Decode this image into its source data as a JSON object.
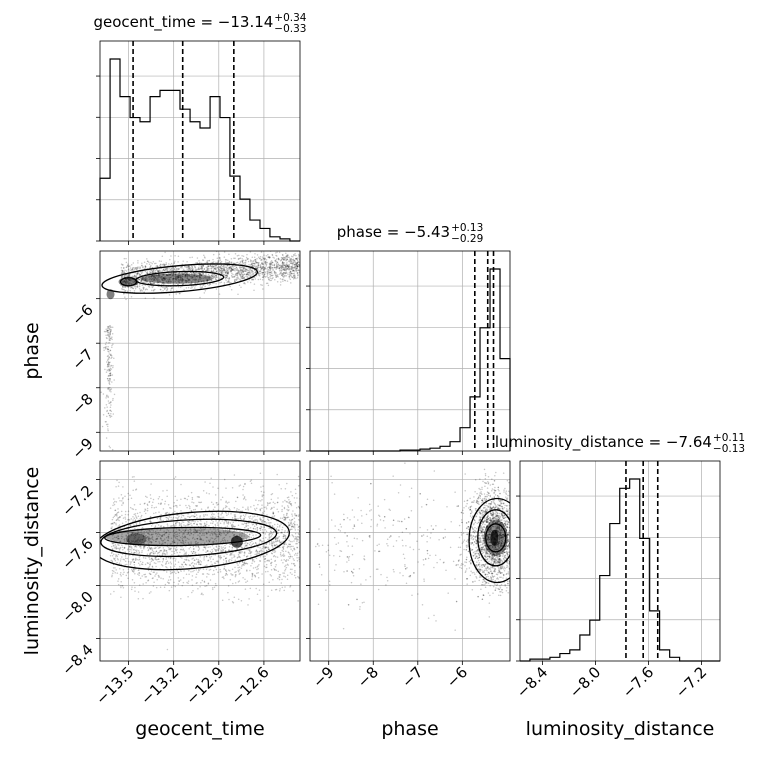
{
  "chart_data": {
    "type": "corner",
    "parameters": [
      "geocent_time",
      "phase",
      "luminosity_distance"
    ],
    "grid": true,
    "titles": [
      {
        "param": "geocent_time",
        "prefix": "geocent_time = ",
        "value": "−13.14",
        "plus": "+0.34",
        "minus": "−0.33"
      },
      {
        "param": "phase",
        "prefix": "phase = ",
        "value": "−5.43",
        "plus": "+0.13",
        "minus": "−0.29"
      },
      {
        "param": "luminosity_distance",
        "prefix": "luminosity_distance = ",
        "value": "−7.64",
        "plus": "+0.11",
        "minus": "−0.13"
      }
    ],
    "axes": {
      "geocent_time": {
        "label": "geocent_time",
        "range": [
          -13.69,
          -12.36
        ],
        "ticks": [
          -13.5,
          -13.2,
          -12.9,
          -12.6
        ],
        "tick_labels": [
          "−13.5",
          "−13.2",
          "−12.9",
          "−12.6"
        ]
      },
      "phase": {
        "label": "phase",
        "range": [
          -9.42,
          -4.93
        ],
        "ticks": [
          -9,
          -8,
          -7,
          -6
        ],
        "tick_labels": [
          "−9",
          "−8",
          "−7",
          "−6"
        ]
      },
      "luminosity_distance": {
        "label": "luminosity_distance",
        "range": [
          -8.57,
          -7.06
        ],
        "ticks": [
          -8.4,
          -8.0,
          -7.6,
          -7.2
        ],
        "tick_labels": [
          "−8.4",
          "−8.0",
          "−7.6",
          "−7.2"
        ]
      }
    },
    "histograms": [
      {
        "param": "geocent_time",
        "bin_edges": [
          -13.69,
          -13.623,
          -13.557,
          -13.49,
          -13.424,
          -13.357,
          -13.291,
          -13.224,
          -13.158,
          -13.091,
          -13.025,
          -12.958,
          -12.892,
          -12.826,
          -12.759,
          -12.693,
          -12.626,
          -12.56,
          -12.493,
          -12.427,
          -12.36
        ],
        "counts": [
          30,
          87,
          69,
          59,
          57,
          69,
          72,
          72,
          63,
          57,
          54,
          69,
          59,
          31,
          20,
          10,
          6,
          2,
          1,
          0
        ],
        "quantiles": [
          -13.47,
          -13.14,
          -12.8
        ]
      },
      {
        "param": "phase",
        "bin_edges": [
          -9.42,
          -9.196,
          -8.971,
          -8.746,
          -8.522,
          -8.297,
          -8.073,
          -7.848,
          -7.624,
          -7.399,
          -7.175,
          -6.95,
          -6.726,
          -6.501,
          -6.276,
          -6.052,
          -5.827,
          -5.603,
          -5.378,
          -5.154,
          -4.93
        ],
        "counts": [
          0,
          0,
          0,
          0,
          0,
          0,
          0,
          0,
          0,
          1,
          1,
          2,
          3,
          5,
          10,
          25,
          58,
          132,
          195,
          99
        ],
        "quantiles": [
          -5.72,
          -5.43,
          -5.3
        ]
      },
      {
        "param": "luminosity_distance",
        "bin_edges": [
          -8.57,
          -8.495,
          -8.42,
          -8.344,
          -8.269,
          -8.194,
          -8.118,
          -8.043,
          -7.968,
          -7.892,
          -7.817,
          -7.742,
          -7.666,
          -7.591,
          -7.516,
          -7.44,
          -7.365,
          -7.29,
          -7.214,
          -7.139,
          -7.06
        ],
        "counts": [
          0,
          1,
          1,
          2,
          4,
          6,
          14,
          22,
          46,
          74,
          93,
          98,
          66,
          27,
          6,
          2,
          0,
          0,
          0,
          0
        ],
        "quantiles": [
          -7.77,
          -7.64,
          -7.53
        ]
      }
    ],
    "scatter_panels": [
      {
        "x": "geocent_time",
        "y": "phase"
      },
      {
        "x": "geocent_time",
        "y": "luminosity_distance"
      },
      {
        "x": "phase",
        "y": "luminosity_distance"
      }
    ],
    "colors": {
      "line": "#000000",
      "grid": "#b0b0b0",
      "points": "#000000"
    }
  }
}
